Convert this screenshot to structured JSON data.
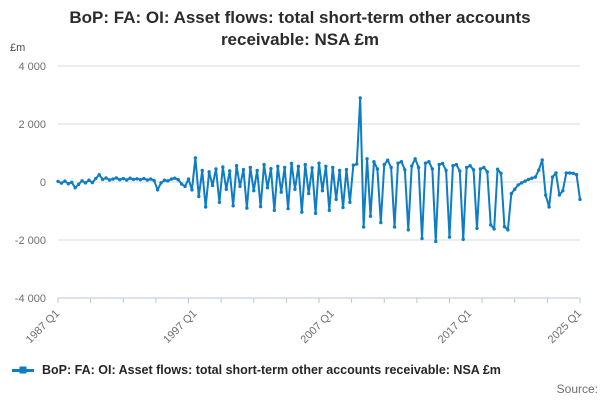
{
  "title": "BoP: FA: OI: Asset flows: total short-term other accounts receivable: NSA £m",
  "unit_label": "£m",
  "legend": {
    "label": "BoP: FA: OI: Asset flows: total short-term other accounts receivable: NSA £m"
  },
  "source_label": "Source:",
  "colors": {
    "line": "#0e7dc4",
    "grid": "#d9d9d9",
    "axis": "#b5c6e0",
    "muted_text": "#6e6e6e",
    "title_text": "#2b2b2b"
  },
  "chart_data": {
    "type": "line",
    "title": "BoP: FA: OI: Asset flows: total short-term other accounts receivable: NSA £m",
    "xlabel": "",
    "ylabel": "£m",
    "ylim": [
      -4000,
      4000
    ],
    "grid": true,
    "legend_position": "bottom-left",
    "y_ticks": [
      {
        "value": 4000,
        "label": "4 000"
      },
      {
        "value": 2000,
        "label": "2 000"
      },
      {
        "value": 0,
        "label": "0"
      },
      {
        "value": -2000,
        "label": "-2 000"
      },
      {
        "value": -4000,
        "label": "-4 000"
      }
    ],
    "x_ticks": [
      {
        "label": "1987 Q1",
        "quarter_index": 0
      },
      {
        "label": "1997 Q1",
        "quarter_index": 40
      },
      {
        "label": "2007 Q1",
        "quarter_index": 80
      },
      {
        "label": "2017 Q1",
        "quarter_index": 120
      },
      {
        "label": "2025 Q1",
        "quarter_index": 152
      }
    ],
    "minor_tick_count": 17,
    "x_start": "1987 Q1",
    "x_end": "2025 Q1",
    "frequency": "quarterly",
    "series": [
      {
        "name": "BoP: FA: OI: Asset flows: total short-term other accounts receivable: NSA £m",
        "values": [
          20,
          -40,
          30,
          -60,
          -10,
          -200,
          -80,
          40,
          -30,
          60,
          -20,
          120,
          250,
          90,
          140,
          70,
          100,
          140,
          80,
          120,
          70,
          130,
          90,
          110,
          80,
          120,
          70,
          100,
          50,
          -270,
          -30,
          60,
          40,
          100,
          130,
          80,
          -70,
          -150,
          100,
          -270,
          830,
          -500,
          400,
          -860,
          350,
          -120,
          450,
          -700,
          520,
          -250,
          380,
          -820,
          560,
          -150,
          430,
          -900,
          500,
          -300,
          400,
          -850,
          600,
          -200,
          460,
          -980,
          540,
          -350,
          500,
          -920,
          640,
          -250,
          540,
          -1040,
          600,
          -400,
          490,
          -1080,
          650,
          -300,
          540,
          -980,
          500,
          -600,
          400,
          -880,
          430,
          -700,
          580,
          620,
          2900,
          -1550,
          800,
          -1180,
          700,
          450,
          -1400,
          600,
          750,
          500,
          -1550,
          650,
          700,
          420,
          -1650,
          550,
          800,
          500,
          -1950,
          650,
          700,
          450,
          -2050,
          600,
          640,
          400,
          -1900,
          560,
          600,
          380,
          -1980,
          500,
          560,
          420,
          -1600,
          450,
          500,
          350,
          -1480,
          -1620,
          440,
          300,
          -1540,
          -1650,
          -400,
          -250,
          -100,
          -30,
          30,
          90,
          130,
          170,
          410,
          760,
          -450,
          -860,
          170,
          310,
          -450,
          -300,
          310,
          310,
          300,
          250,
          -600
        ]
      }
    ]
  }
}
